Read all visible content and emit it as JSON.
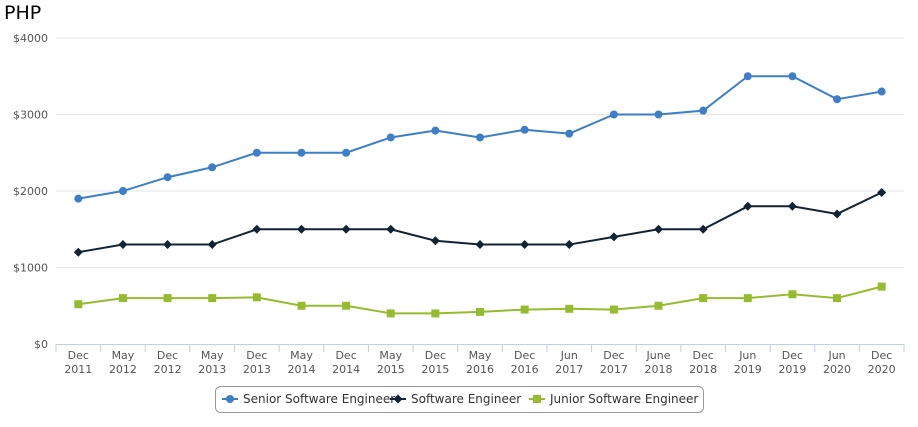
{
  "chart_data": {
    "type": "line",
    "title": "PHP",
    "xlabel": "",
    "ylabel": "",
    "categories": [
      [
        "Dec",
        "2011"
      ],
      [
        "May",
        "2012"
      ],
      [
        "Dec",
        "2012"
      ],
      [
        "May",
        "2013"
      ],
      [
        "Dec",
        "2013"
      ],
      [
        "May",
        "2014"
      ],
      [
        "Dec",
        "2014"
      ],
      [
        "May",
        "2015"
      ],
      [
        "Dec",
        "2015"
      ],
      [
        "May",
        "2016"
      ],
      [
        "Dec",
        "2016"
      ],
      [
        "Jun",
        "2017"
      ],
      [
        "Dec",
        "2017"
      ],
      [
        "June",
        "2018"
      ],
      [
        "Dec",
        "2018"
      ],
      [
        "Jun",
        "2019"
      ],
      [
        "Dec",
        "2019"
      ],
      [
        "Jun",
        "2020"
      ],
      [
        "Dec",
        "2020"
      ]
    ],
    "y_ticks": [
      "$0",
      "$1000",
      "$2000",
      "$3000",
      "$4000"
    ],
    "ylim": [
      0,
      4000
    ],
    "grid": true,
    "legend_position": "bottom-center",
    "series": [
      {
        "name": "Senior Software Engineer",
        "color": "#3d7ec8",
        "marker": "circle",
        "values": [
          1900,
          2000,
          2180,
          2310,
          2500,
          2500,
          2500,
          2700,
          2790,
          2700,
          2800,
          2750,
          3000,
          3000,
          3050,
          3500,
          3500,
          3200,
          3300
        ]
      },
      {
        "name": "Software Engineer",
        "color": "#132336",
        "marker": "diamond",
        "values": [
          1200,
          1300,
          1300,
          1300,
          1500,
          1500,
          1500,
          1500,
          1350,
          1300,
          1300,
          1300,
          1400,
          1500,
          1500,
          1800,
          1800,
          1700,
          1980
        ]
      },
      {
        "name": "Junior Software Engineer",
        "color": "#97bb2f",
        "marker": "square",
        "values": [
          520,
          600,
          600,
          600,
          610,
          500,
          500,
          400,
          400,
          420,
          450,
          460,
          450,
          500,
          600,
          600,
          650,
          600,
          750
        ]
      }
    ]
  }
}
